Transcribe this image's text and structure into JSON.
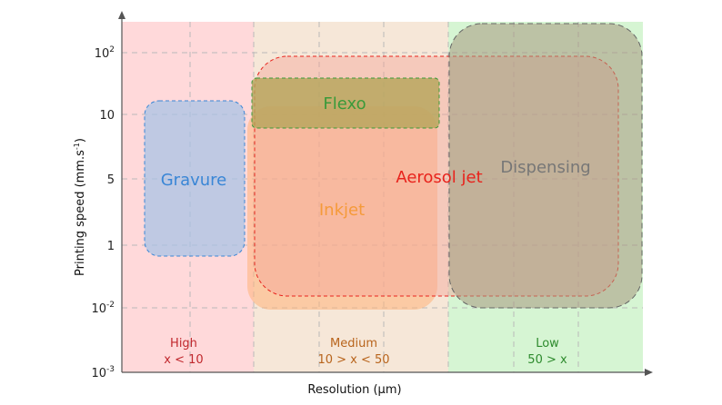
{
  "axes": {
    "x_title": "Resolution (µm)",
    "y_title": "Printing speed (mm.s",
    "y_title_sup": "-1",
    "y_title_end": ")"
  },
  "y_ticks": [
    {
      "base": "10",
      "sup": "2"
    },
    {
      "base": "10",
      "sup": ""
    },
    {
      "base": "5",
      "sup": ""
    },
    {
      "base": "1",
      "sup": ""
    },
    {
      "base": "10",
      "sup": "-2"
    },
    {
      "base": "10",
      "sup": "-3"
    }
  ],
  "zones": [
    {
      "name": "High",
      "range": "x < 10",
      "color": "#c0282d",
      "fill": "#ffd9da"
    },
    {
      "name": "Medium",
      "range": "10 > x < 50",
      "color": "#b8641c",
      "fill": "#f6e7d8"
    },
    {
      "name": "Low",
      "range": "50 > x",
      "color": "#2e8b2e",
      "fill": "#d6f5d3"
    }
  ],
  "regions": [
    {
      "name": "Gravure",
      "color": "#3a86d6"
    },
    {
      "name": "Inkjet",
      "color": "#f59a3a"
    },
    {
      "name": "Flexo",
      "color": "#3a9a3a"
    },
    {
      "name": "Aerosol jet",
      "color": "#e8231c"
    },
    {
      "name": "Dispensing",
      "color": "#777777"
    }
  ]
}
